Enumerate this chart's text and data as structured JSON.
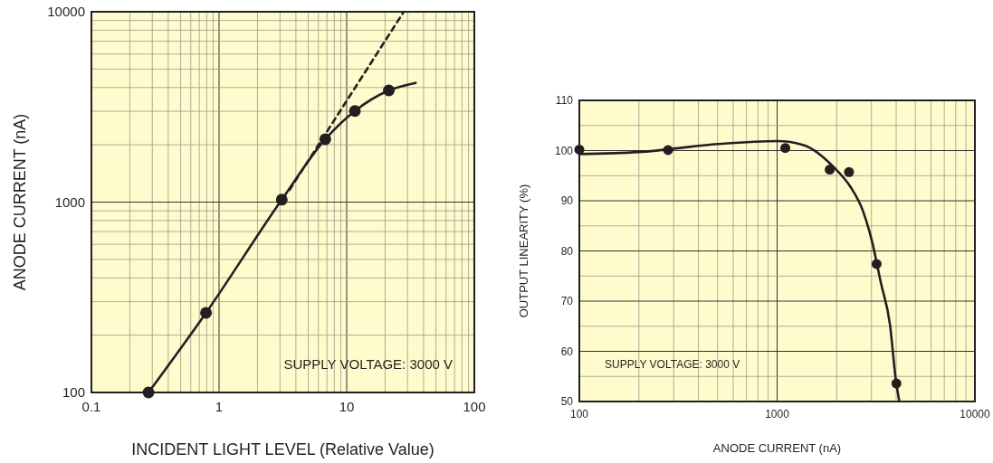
{
  "chart_data": [
    {
      "type": "line",
      "xlabel": "INCIDENT LIGHT LEVEL (Relative Value)",
      "ylabel": "ANODE CURRENT (nA)",
      "log": "xy",
      "grid": true,
      "xlim": [
        0.1,
        100
      ],
      "ylim": [
        100,
        10000
      ],
      "xticks": [
        0.1,
        {
          "value": 0.2,
          "label": null
        },
        {
          "value": 0.3,
          "label": null
        },
        {
          "value": 0.4,
          "label": null
        },
        {
          "value": 0.5,
          "label": null
        },
        {
          "value": 0.6,
          "label": null
        },
        {
          "value": 0.7,
          "label": null
        },
        {
          "value": 0.8,
          "label": null
        },
        {
          "value": 0.9,
          "label": null
        },
        1,
        {
          "value": 2,
          "label": null
        },
        {
          "value": 3,
          "label": null
        },
        {
          "value": 4,
          "label": null
        },
        {
          "value": 5,
          "label": null
        },
        {
          "value": 6,
          "label": null
        },
        {
          "value": 7,
          "label": null
        },
        {
          "value": 8,
          "label": null
        },
        {
          "value": 9,
          "label": null
        },
        10,
        {
          "value": 20,
          "label": null
        },
        {
          "value": 30,
          "label": null
        },
        {
          "value": 40,
          "label": null
        },
        {
          "value": 50,
          "label": null
        },
        {
          "value": 60,
          "label": null
        },
        {
          "value": 70,
          "label": null
        },
        {
          "value": 80,
          "label": null
        },
        {
          "value": 90,
          "label": null
        },
        100
      ],
      "yticks": [
        100,
        {
          "value": 200,
          "label": null
        },
        {
          "value": 300,
          "label": null
        },
        {
          "value": 400,
          "label": null
        },
        {
          "value": 500,
          "label": null
        },
        {
          "value": 600,
          "label": null
        },
        {
          "value": 700,
          "label": null
        },
        {
          "value": 800,
          "label": null
        },
        {
          "value": 900,
          "label": null
        },
        1000,
        {
          "value": 2000,
          "label": null
        },
        {
          "value": 3000,
          "label": null
        },
        {
          "value": 4000,
          "label": null
        },
        {
          "value": 5000,
          "label": null
        },
        {
          "value": 6000,
          "label": null
        },
        {
          "value": 7000,
          "label": null
        },
        {
          "value": 8000,
          "label": null
        },
        {
          "value": 9000,
          "label": null
        },
        10000
      ],
      "series": [
        {
          "color": "#231f20",
          "marker": "none",
          "line_style": "solid",
          "x": [
            0.28,
            0.79,
            3.1,
            6.8,
            11.6,
            21.4,
            34.7
          ],
          "values": [
            100,
            262,
            1030,
            2140,
            3010,
            3860,
            4230
          ]
        },
        {
          "color": "#231f20",
          "marker": "none",
          "line_style": "dashed",
          "x": [
            3.57,
            28
          ],
          "values": [
            1160,
            10000
          ]
        },
        {
          "type": "scatter",
          "color": "#231f20",
          "marker": "circle",
          "x": [
            0.28,
            0.79,
            3.1,
            6.8,
            11.6,
            21.4
          ],
          "values": [
            100,
            262,
            1030,
            2140,
            3010,
            3860
          ]
        }
      ],
      "annotations": [
        "SUPPLY VOLTAGE: 3000 V"
      ]
    },
    {
      "type": "line",
      "xlabel": "ANODE CURRENT (nA)",
      "ylabel": "OUTPUT LINEARITY (%)",
      "log": "x",
      "grid": true,
      "xlim": [
        100,
        10000
      ],
      "ylim": [
        50,
        110
      ],
      "xticks": [
        100,
        {
          "value": 200,
          "label": null
        },
        {
          "value": 300,
          "label": null
        },
        {
          "value": 400,
          "label": null
        },
        {
          "value": 500,
          "label": null
        },
        {
          "value": 600,
          "label": null
        },
        {
          "value": 700,
          "label": null
        },
        {
          "value": 800,
          "label": null
        },
        {
          "value": 900,
          "label": null
        },
        1000,
        {
          "value": 2000,
          "label": null
        },
        {
          "value": 3000,
          "label": null
        },
        {
          "value": 4000,
          "label": null
        },
        {
          "value": 5000,
          "label": null
        },
        {
          "value": 6000,
          "label": null
        },
        {
          "value": 7000,
          "label": null
        },
        {
          "value": 8000,
          "label": null
        },
        {
          "value": 9000,
          "label": null
        },
        10000
      ],
      "yticks": [
        50,
        {
          "value": 55,
          "label": null
        },
        60,
        {
          "value": 65,
          "label": null
        },
        70,
        {
          "value": 75,
          "label": null
        },
        80,
        {
          "value": 85,
          "label": null
        },
        90,
        {
          "value": 95,
          "label": null
        },
        100,
        {
          "value": 105,
          "label": null
        },
        110
      ],
      "series": [
        {
          "color": "#231f20",
          "marker": "none",
          "line_style": "solid",
          "x": [
            100,
            200,
            500,
            1000,
            1360,
            1945,
            2355,
            2715,
            3015,
            3350,
            3725,
            3980,
            4150
          ],
          "values": [
            99.3,
            99.7,
            101.3,
            101.9,
            101.1,
            96.6,
            92.7,
            88.0,
            82.0,
            73.6,
            65.2,
            54.4,
            50
          ]
        },
        {
          "type": "scatter",
          "color": "#231f20",
          "marker": "circle",
          "x": [
            100,
            281,
            1100,
            1845,
            2310,
            3185,
            4010
          ],
          "values": [
            100.2,
            100.1,
            100.5,
            96.2,
            95.7,
            77.4,
            53.6
          ]
        }
      ],
      "annotations": [
        "SUPPLY VOLTAGE: 3000 V"
      ]
    }
  ]
}
